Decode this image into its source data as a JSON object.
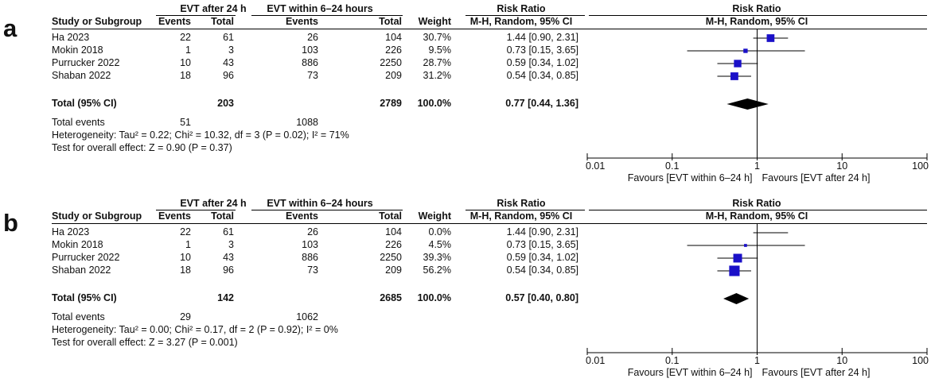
{
  "chart_data": [
    {
      "panel": "a",
      "type": "forest",
      "group_headers": {
        "experimental": "EVT after 24 h",
        "control": "EVT within 6–24 hours"
      },
      "columns": {
        "study": "Study or Subgroup",
        "events": "Events",
        "total": "Total",
        "weight": "Weight",
        "ci": "M-H, Random, 95% CI"
      },
      "rr_header": "Risk Ratio",
      "studies": [
        {
          "name": "Ha 2023",
          "e_events": "22",
          "e_total": "61",
          "c_events": "26",
          "c_total": "104",
          "weight": "30.7%",
          "ci_text": "1.44 [0.90, 2.31]",
          "rr": 1.44,
          "lo": 0.9,
          "hi": 2.31,
          "w": 30.7
        },
        {
          "name": "Mokin 2018",
          "e_events": "1",
          "e_total": "3",
          "c_events": "103",
          "c_total": "226",
          "weight": "9.5%",
          "ci_text": "0.73 [0.15, 3.65]",
          "rr": 0.73,
          "lo": 0.15,
          "hi": 3.65,
          "w": 9.5
        },
        {
          "name": "Purrucker 2022",
          "e_events": "10",
          "e_total": "43",
          "c_events": "886",
          "c_total": "2250",
          "weight": "28.7%",
          "ci_text": "0.59 [0.34, 1.02]",
          "rr": 0.59,
          "lo": 0.34,
          "hi": 1.02,
          "w": 28.7
        },
        {
          "name": "Shaban 2022",
          "e_events": "18",
          "e_total": "96",
          "c_events": "73",
          "c_total": "209",
          "weight": "31.2%",
          "ci_text": "0.54 [0.34, 0.85]",
          "rr": 0.54,
          "lo": 0.34,
          "hi": 0.85,
          "w": 31.2
        }
      ],
      "total": {
        "label": "Total (95% CI)",
        "e_total": "203",
        "c_total": "2789",
        "weight": "100.0%",
        "ci_text": "0.77 [0.44, 1.36]",
        "rr": 0.77,
        "lo": 0.44,
        "hi": 1.36
      },
      "total_events": {
        "label": "Total events",
        "e": "51",
        "c": "1088"
      },
      "heterogeneity": "Heterogeneity: Tau² = 0.22; Chi² = 10.32, df = 3 (P = 0.02); I² = 71%",
      "overall_effect": "Test for overall effect: Z = 0.90 (P = 0.37)",
      "x_scale": "log",
      "xlim": [
        0.01,
        100
      ],
      "x_ticks": [
        0.01,
        0.1,
        1,
        10,
        100
      ],
      "x_tick_labels": [
        "0.01",
        "0.1",
        "1",
        "10",
        "100"
      ],
      "favours_left": "Favours [EVT within 6–24 h]",
      "favours_right": "Favours [EVT after 24 h]",
      "marker_color": "#1a10c8"
    },
    {
      "panel": "b",
      "type": "forest",
      "group_headers": {
        "experimental": "EVT after 24 h",
        "control": "EVT within 6–24 hours"
      },
      "columns": {
        "study": "Study or Subgroup",
        "events": "Events",
        "total": "Total",
        "weight": "Weight",
        "ci": "M-H, Random, 95% CI"
      },
      "rr_header": "Risk Ratio",
      "studies": [
        {
          "name": "Ha 2023",
          "e_events": "22",
          "e_total": "61",
          "c_events": "26",
          "c_total": "104",
          "weight": "0.0%",
          "ci_text": "1.44 [0.90, 2.31]",
          "rr": 1.44,
          "lo": 0.9,
          "hi": 2.31,
          "w": 0.0
        },
        {
          "name": "Mokin 2018",
          "e_events": "1",
          "e_total": "3",
          "c_events": "103",
          "c_total": "226",
          "weight": "4.5%",
          "ci_text": "0.73 [0.15, 3.65]",
          "rr": 0.73,
          "lo": 0.15,
          "hi": 3.65,
          "w": 4.5
        },
        {
          "name": "Purrucker 2022",
          "e_events": "10",
          "e_total": "43",
          "c_events": "886",
          "c_total": "2250",
          "weight": "39.3%",
          "ci_text": "0.59 [0.34, 1.02]",
          "rr": 0.59,
          "lo": 0.34,
          "hi": 1.02,
          "w": 39.3
        },
        {
          "name": "Shaban 2022",
          "e_events": "18",
          "e_total": "96",
          "c_events": "73",
          "c_total": "209",
          "weight": "56.2%",
          "ci_text": "0.54 [0.34, 0.85]",
          "rr": 0.54,
          "lo": 0.34,
          "hi": 0.85,
          "w": 56.2
        }
      ],
      "total": {
        "label": "Total (95% CI)",
        "e_total": "142",
        "c_total": "2685",
        "weight": "100.0%",
        "ci_text": "0.57 [0.40, 0.80]",
        "rr": 0.57,
        "lo": 0.4,
        "hi": 0.8
      },
      "total_events": {
        "label": "Total events",
        "e": "29",
        "c": "1062"
      },
      "heterogeneity": "Heterogeneity: Tau² = 0.00; Chi² = 0.17, df = 2 (P = 0.92); I² = 0%",
      "overall_effect": "Test for overall effect: Z = 3.27 (P = 0.001)",
      "x_scale": "log",
      "xlim": [
        0.01,
        100
      ],
      "x_ticks": [
        0.01,
        0.1,
        1,
        10,
        100
      ],
      "x_tick_labels": [
        "0.01",
        "0.1",
        "1",
        "10",
        "100"
      ],
      "favours_left": "Favours [EVT within 6–24 h]",
      "favours_right": "Favours [EVT after 24 h]",
      "marker_color": "#1a10c8"
    }
  ]
}
